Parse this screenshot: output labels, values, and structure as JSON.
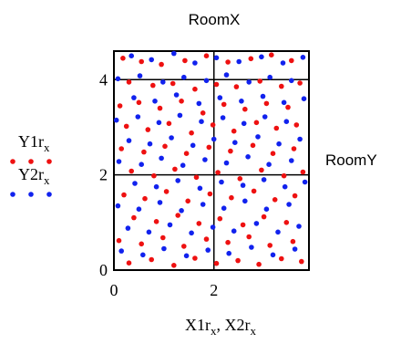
{
  "chart_data": {
    "type": "scatter",
    "top_label": "RoomX",
    "right_label": "RoomY",
    "xlabel": {
      "a": "X1r",
      "a_sub": "x",
      "sep": ", ",
      "b": "X2r",
      "b_sub": "x"
    },
    "xlim": [
      0,
      3.9
    ],
    "ylim": [
      0,
      4.6
    ],
    "x_ticks": [
      0,
      2
    ],
    "y_ticks": [
      0,
      2,
      4
    ],
    "grid": true,
    "legend_position": "left",
    "series": [
      {
        "name": "Y1r",
        "name_sub": "x",
        "color": "#ee1111",
        "points": [
          [
            0.18,
            4.45
          ],
          [
            0.55,
            4.38
          ],
          [
            0.95,
            4.32
          ],
          [
            1.42,
            4.4
          ],
          [
            1.85,
            4.5
          ],
          [
            2.28,
            4.37
          ],
          [
            2.74,
            4.44
          ],
          [
            3.15,
            4.52
          ],
          [
            3.55,
            4.4
          ],
          [
            0.3,
            3.95
          ],
          [
            0.78,
            3.88
          ],
          [
            1.18,
            3.92
          ],
          [
            1.62,
            3.8
          ],
          [
            2.05,
            3.9
          ],
          [
            2.45,
            3.85
          ],
          [
            2.92,
            3.97
          ],
          [
            3.35,
            3.86
          ],
          [
            3.72,
            3.93
          ],
          [
            0.12,
            3.45
          ],
          [
            0.5,
            3.52
          ],
          [
            0.92,
            3.4
          ],
          [
            1.35,
            3.55
          ],
          [
            1.78,
            3.3
          ],
          [
            2.2,
            3.48
          ],
          [
            2.62,
            3.38
          ],
          [
            3.05,
            3.5
          ],
          [
            3.48,
            3.42
          ],
          [
            0.25,
            3.02
          ],
          [
            0.68,
            2.95
          ],
          [
            1.1,
            3.08
          ],
          [
            1.55,
            2.88
          ],
          [
            1.98,
            3.05
          ],
          [
            2.4,
            2.92
          ],
          [
            2.85,
            3.1
          ],
          [
            3.25,
            2.98
          ],
          [
            3.65,
            3.05
          ],
          [
            0.15,
            2.55
          ],
          [
            0.6,
            2.48
          ],
          [
            1.02,
            2.6
          ],
          [
            1.45,
            2.45
          ],
          [
            1.9,
            2.58
          ],
          [
            2.33,
            2.5
          ],
          [
            2.78,
            2.62
          ],
          [
            3.18,
            2.45
          ],
          [
            3.6,
            2.55
          ],
          [
            0.35,
            2.08
          ],
          [
            0.8,
            1.98
          ],
          [
            1.22,
            2.12
          ],
          [
            1.65,
            1.95
          ],
          [
            2.08,
            2.05
          ],
          [
            2.52,
            1.92
          ],
          [
            2.95,
            2.1
          ],
          [
            3.4,
            1.98
          ],
          [
            3.78,
            2.06
          ],
          [
            0.2,
            1.58
          ],
          [
            0.62,
            1.5
          ],
          [
            1.05,
            1.65
          ],
          [
            1.48,
            1.45
          ],
          [
            1.92,
            1.6
          ],
          [
            2.35,
            1.52
          ],
          [
            2.8,
            1.66
          ],
          [
            3.22,
            1.48
          ],
          [
            3.62,
            1.56
          ],
          [
            0.4,
            1.1
          ],
          [
            0.85,
            1.02
          ],
          [
            1.28,
            1.15
          ],
          [
            1.7,
            0.98
          ],
          [
            2.12,
            1.08
          ],
          [
            2.58,
            0.95
          ],
          [
            3.0,
            1.12
          ],
          [
            3.45,
            1.0
          ],
          [
            0.1,
            0.62
          ],
          [
            0.55,
            0.55
          ],
          [
            0.98,
            0.68
          ],
          [
            1.4,
            0.5
          ],
          [
            1.85,
            0.65
          ],
          [
            2.28,
            0.58
          ],
          [
            2.7,
            0.7
          ],
          [
            3.12,
            0.52
          ],
          [
            3.58,
            0.6
          ],
          [
            0.3,
            0.15
          ],
          [
            0.75,
            0.22
          ],
          [
            1.2,
            0.1
          ],
          [
            1.62,
            0.25
          ],
          [
            2.05,
            0.14
          ],
          [
            2.48,
            0.2
          ],
          [
            2.9,
            0.12
          ],
          [
            3.35,
            0.24
          ],
          [
            3.75,
            0.18
          ]
        ]
      },
      {
        "name": "Y2r",
        "name_sub": "x",
        "color": "#1122ee",
        "points": [
          [
            0.35,
            4.5
          ],
          [
            0.75,
            4.42
          ],
          [
            1.2,
            4.55
          ],
          [
            1.62,
            4.35
          ],
          [
            2.05,
            4.46
          ],
          [
            2.5,
            4.38
          ],
          [
            2.95,
            4.48
          ],
          [
            3.38,
            4.35
          ],
          [
            3.78,
            4.47
          ],
          [
            0.08,
            4.02
          ],
          [
            0.52,
            4.08
          ],
          [
            0.98,
            3.95
          ],
          [
            1.4,
            4.05
          ],
          [
            1.85,
            3.98
          ],
          [
            2.25,
            4.1
          ],
          [
            2.7,
            3.95
          ],
          [
            3.12,
            4.05
          ],
          [
            3.55,
            3.98
          ],
          [
            0.4,
            3.62
          ],
          [
            0.82,
            3.55
          ],
          [
            1.25,
            3.68
          ],
          [
            1.7,
            3.5
          ],
          [
            2.12,
            3.62
          ],
          [
            2.55,
            3.55
          ],
          [
            2.98,
            3.65
          ],
          [
            3.4,
            3.52
          ],
          [
            3.8,
            3.6
          ],
          [
            0.05,
            3.15
          ],
          [
            0.48,
            3.22
          ],
          [
            0.9,
            3.1
          ],
          [
            1.32,
            3.25
          ],
          [
            1.75,
            3.12
          ],
          [
            2.18,
            3.2
          ],
          [
            2.6,
            3.08
          ],
          [
            3.02,
            3.22
          ],
          [
            3.45,
            3.12
          ],
          [
            0.3,
            2.72
          ],
          [
            0.72,
            2.65
          ],
          [
            1.15,
            2.78
          ],
          [
            1.58,
            2.62
          ],
          [
            2.0,
            2.75
          ],
          [
            2.42,
            2.68
          ],
          [
            2.88,
            2.8
          ],
          [
            3.3,
            2.65
          ],
          [
            3.72,
            2.75
          ],
          [
            0.1,
            2.28
          ],
          [
            0.55,
            2.22
          ],
          [
            0.95,
            2.35
          ],
          [
            1.38,
            2.2
          ],
          [
            1.82,
            2.32
          ],
          [
            2.25,
            2.25
          ],
          [
            2.68,
            2.38
          ],
          [
            3.1,
            2.22
          ],
          [
            3.55,
            2.3
          ],
          [
            0.42,
            1.82
          ],
          [
            0.85,
            1.75
          ],
          [
            1.28,
            1.88
          ],
          [
            1.72,
            1.72
          ],
          [
            2.15,
            1.85
          ],
          [
            2.58,
            1.78
          ],
          [
            3.0,
            1.9
          ],
          [
            3.42,
            1.75
          ],
          [
            3.82,
            1.85
          ],
          [
            0.08,
            1.35
          ],
          [
            0.5,
            1.28
          ],
          [
            0.92,
            1.42
          ],
          [
            1.35,
            1.25
          ],
          [
            1.78,
            1.38
          ],
          [
            2.2,
            1.3
          ],
          [
            2.62,
            1.45
          ],
          [
            3.05,
            1.28
          ],
          [
            3.5,
            1.38
          ],
          [
            0.28,
            0.88
          ],
          [
            0.7,
            0.8
          ],
          [
            1.12,
            0.95
          ],
          [
            1.55,
            0.78
          ],
          [
            1.98,
            0.9
          ],
          [
            2.4,
            0.82
          ],
          [
            2.85,
            0.98
          ],
          [
            3.28,
            0.8
          ],
          [
            3.7,
            0.92
          ],
          [
            0.15,
            0.4
          ],
          [
            0.58,
            0.32
          ],
          [
            1.0,
            0.45
          ],
          [
            1.45,
            0.3
          ],
          [
            1.88,
            0.42
          ],
          [
            2.3,
            0.35
          ],
          [
            2.75,
            0.48
          ],
          [
            3.18,
            0.32
          ],
          [
            3.62,
            0.44
          ]
        ]
      }
    ]
  }
}
